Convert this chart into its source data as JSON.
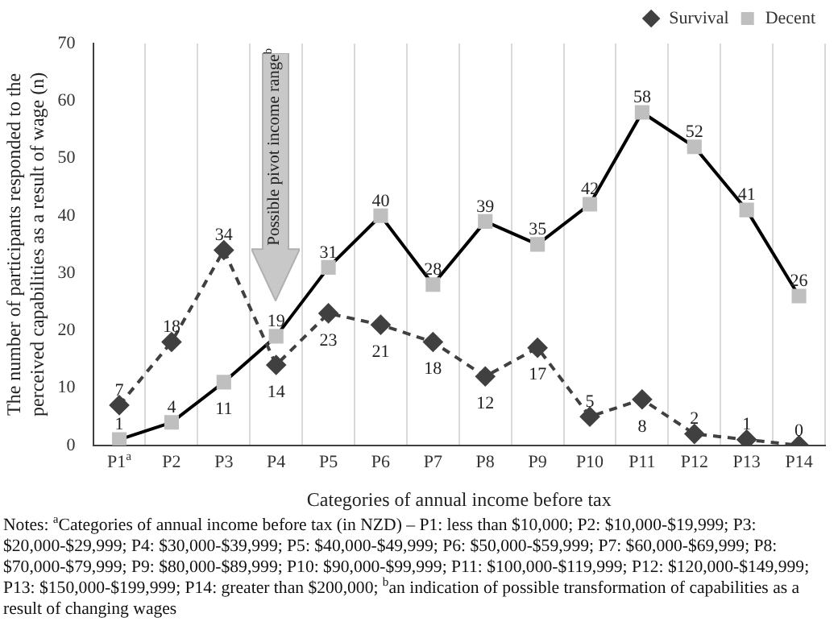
{
  "chart_data": {
    "type": "line",
    "xlabel": "Categories of annual income before tax",
    "ylabel": "The number of participants responded to the perceived capabilities as a result of wage (n)",
    "categories": [
      "P1$^{a}$",
      "P2",
      "P3",
      "P4",
      "P5",
      "P6",
      "P7",
      "P8",
      "P9",
      "P10",
      "P11",
      "P12",
      "P13",
      "P14"
    ],
    "series": [
      {
        "name": "Survival",
        "color": "#404040",
        "marker": "diamond",
        "line_style": "dashed",
        "values": [
          7,
          18,
          34,
          14,
          23,
          21,
          18,
          12,
          17,
          5,
          8,
          2,
          1,
          0
        ]
      },
      {
        "name": "Decent",
        "color": "#bfbfbf",
        "marker": "square",
        "line_style": "solid",
        "values": [
          1,
          4,
          11,
          19,
          31,
          40,
          28,
          39,
          35,
          42,
          58,
          52,
          41,
          26
        ]
      }
    ],
    "ylim": [
      0,
      70
    ],
    "yticks": [
      0,
      10,
      20,
      30,
      40,
      50,
      60,
      70
    ],
    "grid": "x",
    "legend": "top right",
    "data_labels": true,
    "annotations": [
      "Possible pivot income range$^{b}$",
      "Notes: $^{a}$Categories of annual income before tax (in NZD) – P1: less than $10,000; P2: $10,000-$19,999; P3: $20,000-$29,999; P4: $30,000-$39,999; P5: $40,000-$49,999; P6: $50,000-$59,999; P7: $60,000-$69,999; P8: $70,000-$79,999; P9: $80,000-$89,999; P10: $90,000-$99,999; P11: $100,000-$119,999; P12: $120,000-$149,999; P13: $150,000-$199,999; P14: greater than $200,000; $^{b}$an indication of possible transformation of capabilities as a result of changing wages"
    ]
  }
}
